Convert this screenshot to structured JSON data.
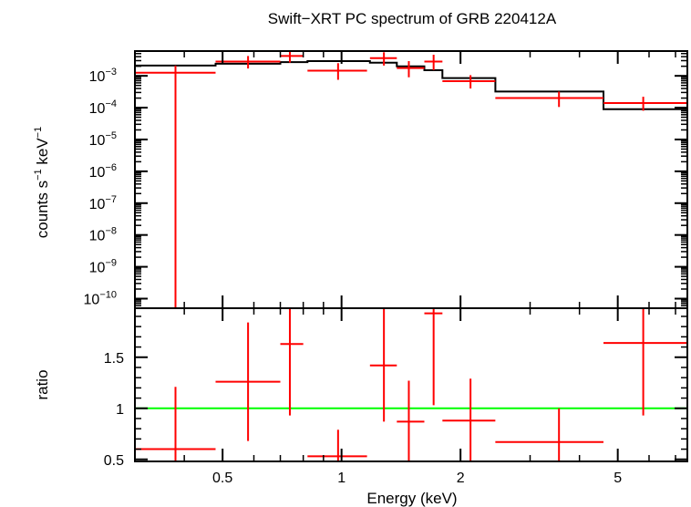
{
  "chart_data": {
    "type": "scatter",
    "title": "Swift−XRT PC spectrum of GRB 220412A",
    "xlabel": "Energy (keV)",
    "xscale": "log",
    "xlim": [
      0.3,
      7.5
    ],
    "xticks": [
      {
        "value": 0.5,
        "label": "0.5"
      },
      {
        "value": 1,
        "label": "1"
      },
      {
        "value": 2,
        "label": "2"
      },
      {
        "value": 5,
        "label": "5"
      }
    ],
    "colors": {
      "data": "#ff0000",
      "model": "#000000",
      "unity": "#00ff00"
    },
    "top_panel": {
      "ylabel_main": "counts s",
      "ylabel_exp1": "−1",
      "ylabel_mid": " keV",
      "ylabel_exp2": "−1",
      "yscale": "log",
      "ylim": [
        5e-11,
        0.006
      ],
      "yticks": [
        {
          "value": 0.001,
          "base": "10",
          "exp": "−3"
        },
        {
          "value": 0.0001,
          "base": "10",
          "exp": "−4"
        },
        {
          "value": 1e-05,
          "base": "10",
          "exp": "−5"
        },
        {
          "value": 1e-06,
          "base": "10",
          "exp": "−6"
        },
        {
          "value": 1e-07,
          "base": "10",
          "exp": "−7"
        },
        {
          "value": 1e-08,
          "base": "10",
          "exp": "−8"
        },
        {
          "value": 1e-09,
          "base": "10",
          "exp": "−9"
        },
        {
          "value": 1e-10,
          "base": "10",
          "exp": "−10"
        }
      ],
      "data": [
        {
          "x": 0.38,
          "xlo": 0.3,
          "xhi": 0.48,
          "y": 0.00125,
          "ylo": 5e-11,
          "yhi": 0.0021
        },
        {
          "x": 0.58,
          "xlo": 0.48,
          "xhi": 0.7,
          "y": 0.0028,
          "ylo": 0.0017,
          "yhi": 0.0042
        },
        {
          "x": 0.74,
          "xlo": 0.7,
          "xhi": 0.8,
          "y": 0.0042,
          "ylo": 0.0026,
          "yhi": 0.0063
        },
        {
          "x": 0.98,
          "xlo": 0.82,
          "xhi": 1.16,
          "y": 0.00145,
          "ylo": 0.00075,
          "yhi": 0.0025
        },
        {
          "x": 1.28,
          "xlo": 1.18,
          "xhi": 1.38,
          "y": 0.0036,
          "ylo": 0.0021,
          "yhi": 0.0055
        },
        {
          "x": 1.48,
          "xlo": 1.38,
          "xhi": 1.62,
          "y": 0.00175,
          "ylo": 0.0009,
          "yhi": 0.0029
        },
        {
          "x": 1.71,
          "xlo": 1.62,
          "xhi": 1.8,
          "y": 0.0028,
          "ylo": 0.0015,
          "yhi": 0.0046
        },
        {
          "x": 2.12,
          "xlo": 1.8,
          "xhi": 2.45,
          "y": 0.00068,
          "ylo": 0.0004,
          "yhi": 0.00105
        },
        {
          "x": 3.55,
          "xlo": 2.45,
          "xhi": 4.6,
          "y": 0.0002,
          "ylo": 0.000105,
          "yhi": 0.00032
        },
        {
          "x": 5.8,
          "xlo": 4.6,
          "xhi": 7.5,
          "y": 0.00014,
          "ylo": 8e-05,
          "yhi": 0.00022
        }
      ],
      "model": [
        {
          "xlo": 0.3,
          "xhi": 0.48,
          "y": 0.0021
        },
        {
          "xlo": 0.48,
          "xhi": 0.7,
          "y": 0.0024
        },
        {
          "xlo": 0.7,
          "xhi": 0.82,
          "y": 0.0027
        },
        {
          "xlo": 0.82,
          "xhi": 1.18,
          "y": 0.0029
        },
        {
          "xlo": 1.18,
          "xhi": 1.38,
          "y": 0.0026
        },
        {
          "xlo": 1.38,
          "xhi": 1.62,
          "y": 0.002
        },
        {
          "xlo": 1.62,
          "xhi": 1.8,
          "y": 0.0015
        },
        {
          "xlo": 1.8,
          "xhi": 2.45,
          "y": 0.00085
        },
        {
          "xlo": 2.45,
          "xhi": 4.6,
          "y": 0.00032
        },
        {
          "xlo": 4.6,
          "xhi": 7.5,
          "y": 9e-05
        }
      ]
    },
    "bottom_panel": {
      "ylabel": "ratio",
      "yscale": "linear",
      "ylim": [
        0.48,
        1.98
      ],
      "yticks": [
        {
          "value": 0.5,
          "label": "0.5"
        },
        {
          "value": 1,
          "label": "1"
        },
        {
          "value": 1.5,
          "label": "1.5"
        }
      ],
      "unity": 1,
      "data": [
        {
          "x": 0.38,
          "xlo": 0.3,
          "xhi": 0.48,
          "y": 0.6,
          "ylo": 0.48,
          "yhi": 1.21
        },
        {
          "x": 0.58,
          "xlo": 0.48,
          "xhi": 0.7,
          "y": 1.26,
          "ylo": 0.68,
          "yhi": 1.84
        },
        {
          "x": 0.74,
          "xlo": 0.7,
          "xhi": 0.8,
          "y": 1.63,
          "ylo": 0.93,
          "yhi": 1.98
        },
        {
          "x": 0.98,
          "xlo": 0.82,
          "xhi": 1.16,
          "y": 0.53,
          "ylo": 0.48,
          "yhi": 0.79
        },
        {
          "x": 1.28,
          "xlo": 1.18,
          "xhi": 1.38,
          "y": 1.42,
          "ylo": 0.87,
          "yhi": 1.98
        },
        {
          "x": 1.48,
          "xlo": 1.38,
          "xhi": 1.62,
          "y": 0.87,
          "ylo": 0.48,
          "yhi": 1.27
        },
        {
          "x": 1.71,
          "xlo": 1.62,
          "xhi": 1.8,
          "y": 1.93,
          "ylo": 1.03,
          "yhi": 1.98
        },
        {
          "x": 2.12,
          "xlo": 1.8,
          "xhi": 2.45,
          "y": 0.88,
          "ylo": 0.48,
          "yhi": 1.29
        },
        {
          "x": 3.55,
          "xlo": 2.45,
          "xhi": 4.6,
          "y": 0.67,
          "ylo": 0.48,
          "yhi": 1.0
        },
        {
          "x": 5.8,
          "xlo": 4.6,
          "xhi": 7.5,
          "y": 1.64,
          "ylo": 0.93,
          "yhi": 1.98
        }
      ]
    }
  }
}
